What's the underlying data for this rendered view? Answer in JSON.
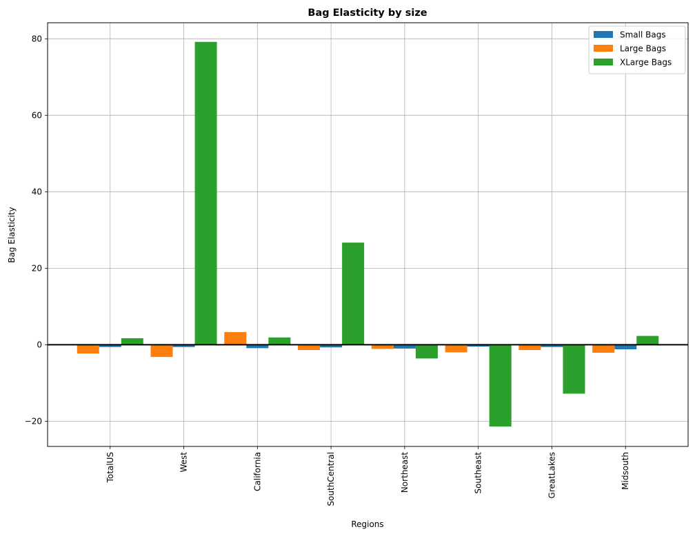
{
  "chart_data": {
    "type": "bar",
    "title": "Bag Elasticity by size",
    "xlabel": "Regions",
    "ylabel": "Bag Elasticity",
    "categories": [
      "TotalUS",
      "West",
      "California",
      "SouthCentral",
      "Northeast",
      "Southeast",
      "GreatLakes",
      "Midsouth"
    ],
    "series": [
      {
        "name": "Small Bags",
        "color": "#1f77b4",
        "values": [
          -0.6,
          -0.6,
          -0.9,
          -0.7,
          -1.0,
          -0.5,
          -0.6,
          -1.2
        ]
      },
      {
        "name": "Large Bags",
        "color": "#ff7f0e",
        "values": [
          -2.3,
          -3.2,
          3.3,
          -1.4,
          -1.1,
          -2.0,
          -1.4,
          -2.1
        ]
      },
      {
        "name": "XLarge Bags",
        "color": "#2ca02c",
        "values": [
          1.7,
          79.2,
          1.9,
          26.7,
          -3.6,
          -21.4,
          -12.8,
          2.3
        ]
      }
    ],
    "ylim": [
      -26.6,
      84.2
    ],
    "yticks": [
      -20,
      0,
      20,
      40,
      60,
      80
    ],
    "ytick_labels": [
      "−20",
      "0",
      "20",
      "40",
      "60",
      "80"
    ],
    "grid": true,
    "legend_position": "top-right"
  }
}
